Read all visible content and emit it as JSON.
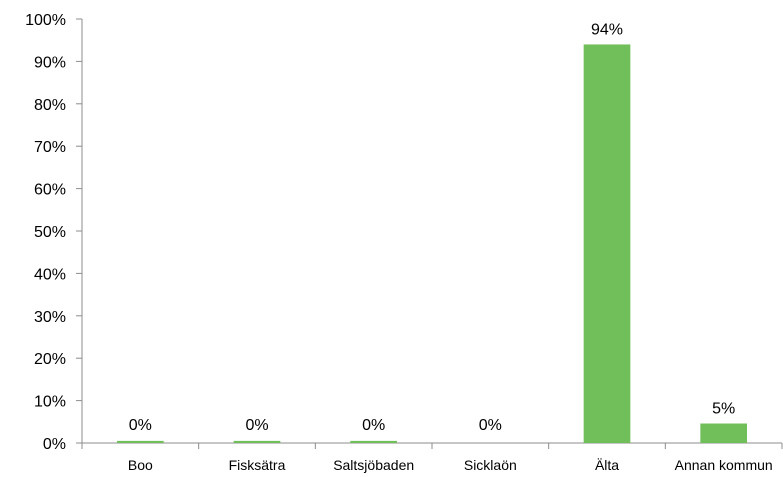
{
  "chart_data": {
    "type": "bar",
    "categories": [
      "Boo",
      "Fisksätra",
      "Saltsjöbaden",
      "Sicklaön",
      "Älta",
      "Annan kommun"
    ],
    "values": [
      0.5,
      0.5,
      0.5,
      0,
      94,
      4.6
    ],
    "data_labels": [
      "0%",
      "0%",
      "0%",
      "0%",
      "94%",
      "5%"
    ],
    "y_ticks": [
      0,
      10,
      20,
      30,
      40,
      50,
      60,
      70,
      80,
      90,
      100
    ],
    "y_tick_labels": [
      "0%",
      "10%",
      "20%",
      "30%",
      "40%",
      "50%",
      "60%",
      "70%",
      "80%",
      "90%",
      "100%"
    ],
    "ylim": [
      0,
      100
    ],
    "grid": false,
    "legend": "none",
    "bar_color": "#71BF5B",
    "axis_color": "#8C8C8C"
  }
}
